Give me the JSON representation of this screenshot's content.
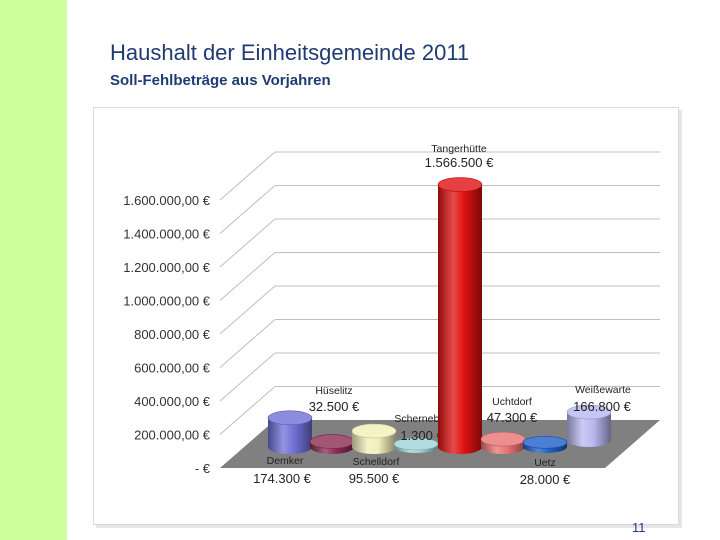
{
  "slide": {
    "title": "Haushalt der Einheitsgemeinde 2011",
    "subtitle": "Soll-Fehlbeträge aus Vorjahren",
    "page_number": "11",
    "accent_color": "#ccff99"
  },
  "chart_data": {
    "type": "bar",
    "style": "3d-cylinder",
    "title": "",
    "xlabel": "",
    "ylabel": "",
    "ylim": [
      0,
      1600000
    ],
    "grid": true,
    "y_ticks": [
      {
        "value": 0,
        "label": "-     €"
      },
      {
        "value": 200000,
        "label": "200.000,00 €"
      },
      {
        "value": 400000,
        "label": "400.000,00 €"
      },
      {
        "value": 600000,
        "label": "600.000,00 €"
      },
      {
        "value": 800000,
        "label": "800.000,00 €"
      },
      {
        "value": 1000000,
        "label": "1.000.000,00 €"
      },
      {
        "value": 1200000,
        "label": "1.200.000,00 €"
      },
      {
        "value": 1400000,
        "label": "1.400.000,00 €"
      },
      {
        "value": 1600000,
        "label": "1.600.000,00 €"
      }
    ],
    "categories": [
      "Demker",
      "Hüselitz",
      "Schelldorf",
      "Schernebeck",
      "Tangerhütte",
      "Uchtdorf",
      "Uetz",
      "Weißewarte"
    ],
    "values": [
      174300,
      32500,
      95500,
      1300,
      1566500,
      47300,
      28000,
      166800
    ],
    "value_labels": [
      "174.300 €",
      "32.500 €",
      "95.500 €",
      "1.300 €",
      "1.566.500 €",
      "47.300 €",
      "28.000 €",
      "166.800 €"
    ],
    "colors": [
      "#6f6fd6",
      "#8b2a52",
      "#f2efb8",
      "#9fd2d6",
      "#e01010",
      "#e87373",
      "#1f5fc9",
      "#b8b8f0"
    ]
  }
}
